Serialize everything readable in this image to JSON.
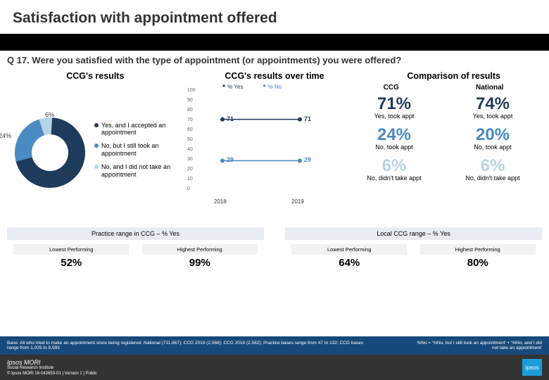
{
  "title": "Satisfaction with appointment offered",
  "question": "Q 17. Were you satisfied with the type of appointment (or appointments) you were offered?",
  "sections": {
    "left": "CCG's results",
    "mid": "CCG's results over time",
    "right": "Comparison of results"
  },
  "donut": {
    "slices": [
      {
        "label": "71%",
        "color": "#1f3b5c",
        "pct": 71
      },
      {
        "label": "24%",
        "color": "#4a8bc2",
        "pct": 24
      },
      {
        "label": "6%",
        "color": "#b7d3e8",
        "pct": 6
      }
    ],
    "legend": [
      {
        "color": "#1f3b5c",
        "text": "Yes, and I accepted an appointment"
      },
      {
        "color": "#4a8bc2",
        "text": "No, but I still took an appointment"
      },
      {
        "color": "#b7d3e8",
        "text": "No, and I did not take an appointment"
      }
    ]
  },
  "linechart": {
    "series_labels": {
      "yes": "% Yes",
      "no": "% No"
    },
    "yticks": [
      "100",
      "90",
      "80",
      "70",
      "60",
      "50",
      "40",
      "30",
      "20",
      "10",
      "0"
    ],
    "years": [
      "2018",
      "2019"
    ],
    "yes": {
      "color": "#1f3b5c",
      "vals": [
        71,
        71
      ]
    },
    "no": {
      "color": "#4a8bc2",
      "vals": [
        29,
        29
      ]
    }
  },
  "comparison": {
    "head": {
      "ccg": "CCG",
      "nat": "National"
    },
    "rows": [
      {
        "ccg": "71%",
        "nat": "74%",
        "ccg_c": "#1f3b5c",
        "nat_c": "#1f3b5c",
        "ccg_l": "Yes, took appt",
        "nat_l": "Yes, took appt"
      },
      {
        "ccg": "24%",
        "nat": "20%",
        "ccg_c": "#4a8bc2",
        "nat_c": "#4a8bc2",
        "ccg_l": "No, took appt",
        "nat_l": "No, took appt"
      },
      {
        "ccg": "6%",
        "nat": "6%",
        "ccg_c": "#b7d3e8",
        "nat_c": "#b7d3e8",
        "ccg_l": "No, didn't take appt",
        "nat_l": "No, didn't take appt"
      }
    ]
  },
  "ranges": {
    "practice": {
      "title": "Practice range in CCG – % Yes",
      "low_label": "Lowest Performing",
      "low": "52%",
      "high_label": "Highest Performing",
      "high": "99%"
    },
    "local": {
      "title": "Local CCG range – % Yes",
      "low_label": "Lowest Performing",
      "low": "64%",
      "high_label": "Highest Performing",
      "high": "80%"
    }
  },
  "footer": {
    "base": "Base: All who tried to make an appointment since being registered: National (711,867); CCG 2019 (2,568); CCG 2018 (2,582); Practice bases range from 47 to 132; CCG bases range from 1,025 to 9,593",
    "note": "%No = '%No, but I still took an appointment' + '%No, and I did not take an appointment'",
    "brand": "Ipsos MORI",
    "sub": "Social Research Institute",
    "copyright": "© Ipsos MORI    18-042653-01 | Version 1 | Public",
    "page": "26"
  }
}
